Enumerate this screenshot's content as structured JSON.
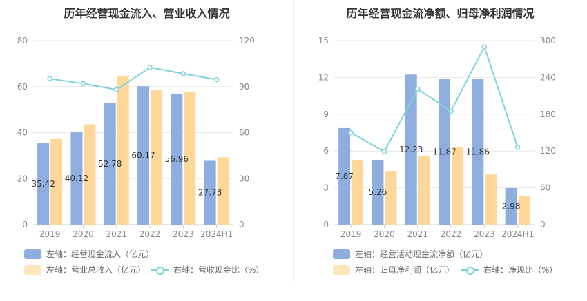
{
  "colors": {
    "bar_left": "#8eaee0",
    "bar_right": "#ffd899",
    "line": "#7fd3dc",
    "grid": "#e8e8e8"
  },
  "chart_data": [
    {
      "type": "bar",
      "title": "历年经营现金流入、营业收入情况",
      "categories": [
        "2019",
        "2020",
        "2021",
        "2022",
        "2023",
        "2024H1"
      ],
      "y_left_ticks": [
        "0",
        "20",
        "40",
        "60",
        "80"
      ],
      "y_right_ticks": [
        "0",
        "30",
        "60",
        "90",
        "120"
      ],
      "ylim_left": [
        0,
        80
      ],
      "ylim_right": [
        0,
        120
      ],
      "series": [
        {
          "name": "左轴：经营现金流入（亿元）",
          "axis": "left",
          "kind": "bar",
          "values": [
            35.42,
            40.12,
            52.78,
            60.17,
            56.96,
            27.73
          ],
          "labels": [
            "35.42",
            "40.12",
            "52.78",
            "60.17",
            "56.96",
            "27.73"
          ]
        },
        {
          "name": "左轴：营业总收入（亿元）",
          "axis": "left",
          "kind": "bar",
          "values": [
            37.2,
            43.6,
            64.5,
            58.7,
            57.8,
            29.3
          ]
        },
        {
          "name": "右轴：营收现金比（%）",
          "axis": "right",
          "kind": "line",
          "values": [
            95.2,
            92.0,
            88.0,
            102.5,
            98.5,
            94.6
          ]
        }
      ],
      "grid": true
    },
    {
      "type": "bar",
      "title": "历年经营现金流净额、归母净利润情况",
      "categories": [
        "2019",
        "2020",
        "2021",
        "2022",
        "2023",
        "2024H1"
      ],
      "y_left_ticks": [
        "0",
        "3",
        "6",
        "9",
        "12",
        "15"
      ],
      "y_right_ticks": [
        "0",
        "60",
        "120",
        "180",
        "240",
        "300"
      ],
      "ylim_left": [
        0,
        15
      ],
      "ylim_right": [
        0,
        300
      ],
      "series": [
        {
          "name": "左轴：经营活动现金流净额（亿元）",
          "axis": "left",
          "kind": "bar",
          "values": [
            7.87,
            5.26,
            12.23,
            11.87,
            11.86,
            2.98
          ],
          "labels": [
            "7.87",
            "5.26",
            "12.23",
            "11.87",
            "11.86",
            "2.98"
          ]
        },
        {
          "name": "左轴：归母净利润（亿元）",
          "axis": "left",
          "kind": "bar",
          "values": [
            5.25,
            4.38,
            5.55,
            6.32,
            4.08,
            2.36
          ]
        },
        {
          "name": "右轴：净现比（%）",
          "axis": "right",
          "kind": "line",
          "values": [
            150,
            119,
            221,
            185,
            290,
            126
          ]
        }
      ],
      "grid": true
    }
  ]
}
